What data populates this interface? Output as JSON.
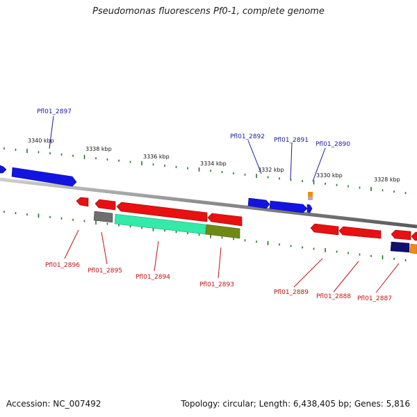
{
  "title": "Pseudomonas fluorescens Pf0-1, complete genome",
  "accession": "Accession: NC_007492",
  "summary": "Topology: circular; Length: 6,438,405 bp; Genes: 5,816",
  "scale_labels": [
    "3340 kbp",
    "3338 kbp",
    "3336 kbp",
    "3334 kbp",
    "3332 kbp",
    "3330 kbp",
    "3328 kbp"
  ],
  "colors": {
    "forward_gene": "#1414e0",
    "reverse_gene": "#e81010",
    "backbone": "#8c8c8c",
    "tick": "#1e7a1e",
    "cog_gray": "#6e6e6e",
    "cog_aqua": "#33eaa8",
    "cog_olive": "#6e8a14",
    "cog_navy": "#10106e",
    "cog_orange": "#f08c10"
  },
  "genes_forward": [
    "Pfl01_2897",
    "Pfl01_2892",
    "Pfl01_2891",
    "Pfl01_2890"
  ],
  "genes_reverse": [
    "Pfl01_2896",
    "Pfl01_2895",
    "Pfl01_2894",
    "Pfl01_2893",
    "Pfl01_2889",
    "Pfl01_2888",
    "Pfl01_2887"
  ]
}
